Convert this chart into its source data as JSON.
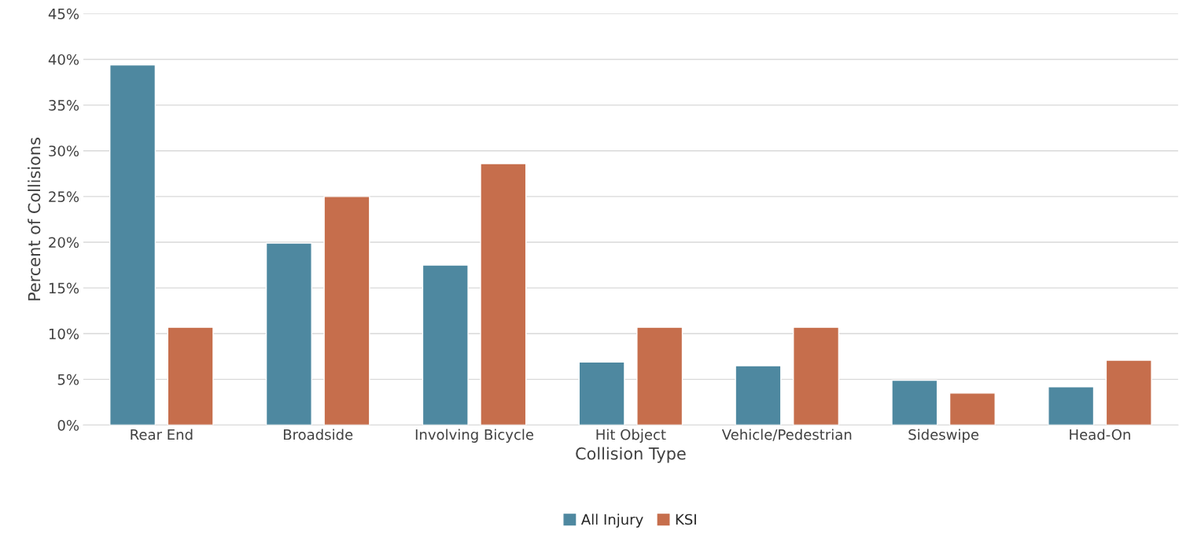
{
  "chart_data": {
    "type": "bar",
    "xlabel": "Collision Type",
    "ylabel": "Percent of Collisions",
    "categories": [
      "Rear End",
      "Broadside",
      "Involving Bicycle",
      "Hit Object",
      "Vehicle/Pedestrian",
      "Sideswipe",
      "Head-On"
    ],
    "series": [
      {
        "name": "All Injury",
        "color": "#4e88a0",
        "values": [
          39.4,
          19.9,
          17.5,
          6.9,
          6.5,
          4.9,
          4.2
        ]
      },
      {
        "name": "KSI",
        "color": "#c66e4c",
        "values": [
          10.7,
          25.0,
          28.6,
          10.7,
          10.7,
          3.5,
          7.1
        ]
      }
    ],
    "ylim": [
      0,
      45
    ],
    "yticks": [
      {
        "value": 0,
        "label": "0%"
      },
      {
        "value": 5,
        "label": "5%"
      },
      {
        "value": 10,
        "label": "10%"
      },
      {
        "value": 15,
        "label": "15%"
      },
      {
        "value": 20,
        "label": "20%"
      },
      {
        "value": 25,
        "label": "25%"
      },
      {
        "value": 30,
        "label": "30%"
      },
      {
        "value": 35,
        "label": "35%"
      },
      {
        "value": 40,
        "label": "40%"
      },
      {
        "value": 45,
        "label": "45%"
      }
    ],
    "grid": "y",
    "legend": "bottom"
  }
}
